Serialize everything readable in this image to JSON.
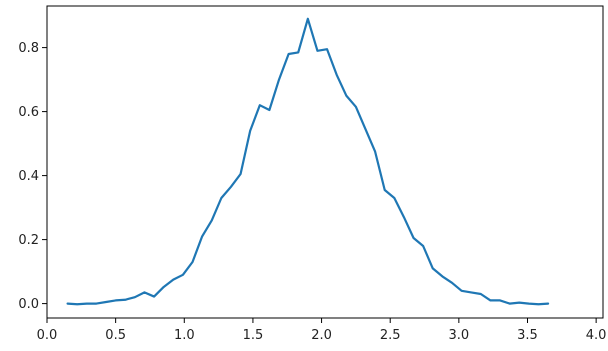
{
  "chart_data": {
    "type": "line",
    "title": "",
    "xlabel": "",
    "ylabel": "",
    "xlim": [
      -0.0,
      4.05
    ],
    "ylim": [
      -0.045,
      0.93
    ],
    "grid": false,
    "legend": "none",
    "x_ticks": [
      {
        "value": 0.0,
        "label": "0.0"
      },
      {
        "value": 0.5,
        "label": "0.5"
      },
      {
        "value": 1.0,
        "label": "1.0"
      },
      {
        "value": 1.5,
        "label": "1.5"
      },
      {
        "value": 2.0,
        "label": "2.0"
      },
      {
        "value": 2.5,
        "label": "2.5"
      },
      {
        "value": 3.0,
        "label": "3.0"
      },
      {
        "value": 3.5,
        "label": "3.5"
      },
      {
        "value": 4.0,
        "label": "4.0"
      }
    ],
    "y_ticks": [
      {
        "value": 0.0,
        "label": "0.0"
      },
      {
        "value": 0.2,
        "label": "0.2"
      },
      {
        "value": 0.4,
        "label": "0.4"
      },
      {
        "value": 0.6,
        "label": "0.6"
      },
      {
        "value": 0.8,
        "label": "0.8"
      }
    ],
    "series": [
      {
        "color": "#1f77b4",
        "points": [
          [
            0.15,
            0.0
          ],
          [
            0.22,
            -0.002
          ],
          [
            0.29,
            0.0
          ],
          [
            0.36,
            0.0
          ],
          [
            0.43,
            0.005
          ],
          [
            0.5,
            0.01
          ],
          [
            0.57,
            0.012
          ],
          [
            0.64,
            0.02
          ],
          [
            0.71,
            0.035
          ],
          [
            0.78,
            0.022
          ],
          [
            0.85,
            0.052
          ],
          [
            0.92,
            0.075
          ],
          [
            0.99,
            0.09
          ],
          [
            1.06,
            0.13
          ],
          [
            1.13,
            0.21
          ],
          [
            1.2,
            0.26
          ],
          [
            1.27,
            0.33
          ],
          [
            1.34,
            0.365
          ],
          [
            1.41,
            0.405
          ],
          [
            1.48,
            0.54
          ],
          [
            1.55,
            0.62
          ],
          [
            1.62,
            0.605
          ],
          [
            1.69,
            0.7
          ],
          [
            1.76,
            0.78
          ],
          [
            1.83,
            0.785
          ],
          [
            1.9,
            0.89
          ],
          [
            1.97,
            0.79
          ],
          [
            2.04,
            0.795
          ],
          [
            2.11,
            0.715
          ],
          [
            2.18,
            0.65
          ],
          [
            2.25,
            0.615
          ],
          [
            2.32,
            0.545
          ],
          [
            2.39,
            0.475
          ],
          [
            2.46,
            0.355
          ],
          [
            2.53,
            0.33
          ],
          [
            2.6,
            0.27
          ],
          [
            2.67,
            0.205
          ],
          [
            2.74,
            0.18
          ],
          [
            2.81,
            0.11
          ],
          [
            2.88,
            0.085
          ],
          [
            2.95,
            0.065
          ],
          [
            3.02,
            0.04
          ],
          [
            3.09,
            0.035
          ],
          [
            3.16,
            0.03
          ],
          [
            3.23,
            0.01
          ],
          [
            3.3,
            0.01
          ],
          [
            3.37,
            0.0
          ],
          [
            3.44,
            0.003
          ],
          [
            3.51,
            0.0
          ],
          [
            3.58,
            -0.002
          ],
          [
            3.65,
            0.0
          ]
        ]
      }
    ]
  }
}
